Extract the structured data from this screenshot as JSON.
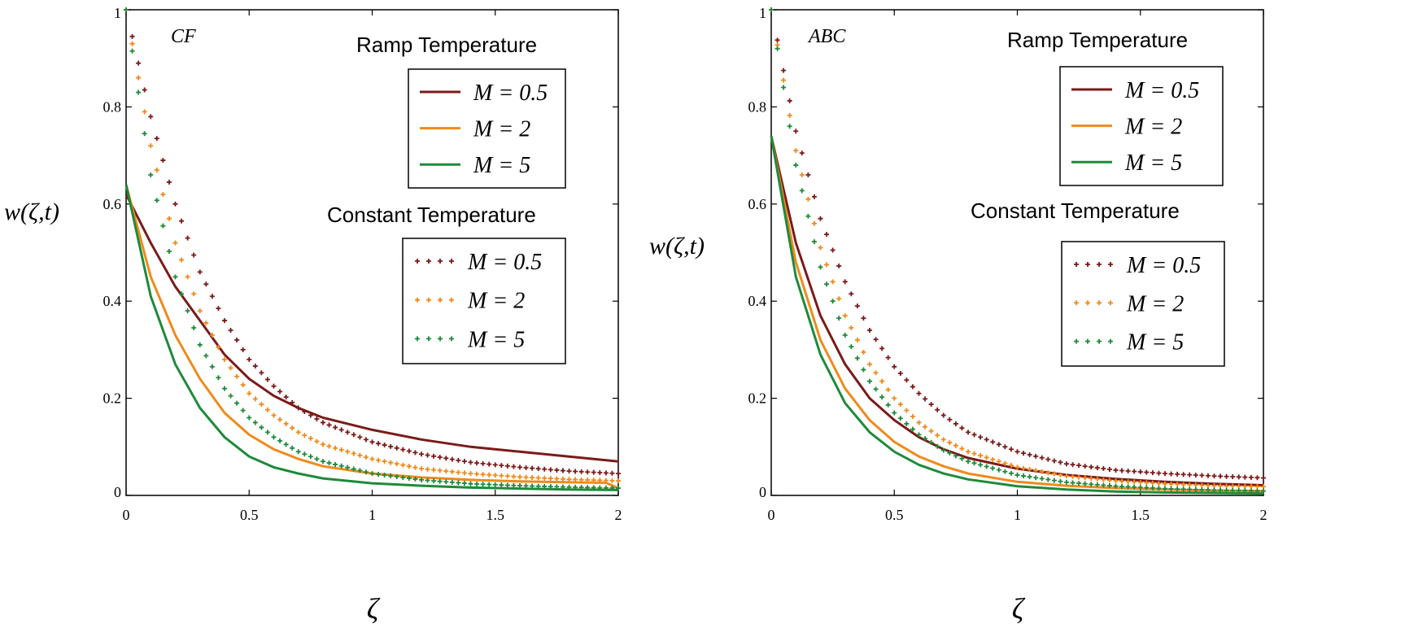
{
  "chart_data": [
    {
      "type": "line",
      "title": "CF",
      "xlabel": "ζ",
      "ylabel": "w(ζ,t)",
      "xlim": [
        0,
        2
      ],
      "ylim": [
        0,
        1
      ],
      "xticks": [
        "0",
        "0.5",
        "1",
        "1.5",
        "2"
      ],
      "yticks": [
        "0",
        "0.2",
        "0.4",
        "0.6",
        "0.8",
        "1"
      ],
      "legend_groups": [
        {
          "title": "Ramp Temperature",
          "style": "solid",
          "series": [
            {
              "name": "M = 0.5",
              "color": "#7b1a1a",
              "x": [
                0,
                0.1,
                0.2,
                0.3,
                0.4,
                0.5,
                0.6,
                0.7,
                0.8,
                1.0,
                1.2,
                1.4,
                1.6,
                1.8,
                2.0
              ],
              "y": [
                0.62,
                0.52,
                0.43,
                0.36,
                0.29,
                0.24,
                0.205,
                0.18,
                0.16,
                0.135,
                0.115,
                0.1,
                0.09,
                0.08,
                0.07
              ]
            },
            {
              "name": "M = 2",
              "color": "#f08a1c",
              "x": [
                0,
                0.1,
                0.2,
                0.3,
                0.4,
                0.5,
                0.6,
                0.7,
                0.8,
                1.0,
                1.2,
                1.4,
                1.6,
                1.8,
                1.95,
                2.0
              ],
              "y": [
                0.64,
                0.45,
                0.33,
                0.24,
                0.17,
                0.125,
                0.095,
                0.075,
                0.06,
                0.045,
                0.037,
                0.032,
                0.029,
                0.027,
                0.026,
                0.015
              ]
            },
            {
              "name": "M = 5",
              "color": "#1e8a3a",
              "x": [
                0,
                0.1,
                0.2,
                0.3,
                0.4,
                0.5,
                0.6,
                0.7,
                0.8,
                1.0,
                1.2,
                1.4,
                1.6,
                1.8,
                2.0
              ],
              "y": [
                0.64,
                0.41,
                0.27,
                0.18,
                0.12,
                0.08,
                0.058,
                0.045,
                0.035,
                0.025,
                0.02,
                0.016,
                0.014,
                0.012,
                0.011
              ]
            }
          ]
        },
        {
          "title": "Constant Temperature",
          "style": "dotted",
          "series": [
            {
              "name": "M = 0.5",
              "color": "#7b1a1a",
              "x": [
                0,
                0.1,
                0.2,
                0.3,
                0.4,
                0.5,
                0.6,
                0.7,
                0.8,
                1.0,
                1.2,
                1.4,
                1.6,
                1.8,
                2.0
              ],
              "y": [
                1.0,
                0.78,
                0.6,
                0.46,
                0.36,
                0.28,
                0.225,
                0.18,
                0.15,
                0.11,
                0.085,
                0.068,
                0.058,
                0.05,
                0.045
              ]
            },
            {
              "name": "M = 2",
              "color": "#f08a1c",
              "x": [
                0,
                0.1,
                0.2,
                0.3,
                0.4,
                0.5,
                0.6,
                0.7,
                0.8,
                1.0,
                1.2,
                1.4,
                1.6,
                1.8,
                2.0
              ],
              "y": [
                1.0,
                0.72,
                0.52,
                0.38,
                0.28,
                0.21,
                0.165,
                0.13,
                0.105,
                0.075,
                0.055,
                0.045,
                0.038,
                0.033,
                0.03
              ]
            },
            {
              "name": "M = 5",
              "color": "#1e8a3a",
              "x": [
                0,
                0.1,
                0.2,
                0.3,
                0.4,
                0.5,
                0.6,
                0.7,
                0.8,
                1.0,
                1.2,
                1.4,
                1.6,
                1.8,
                2.0
              ],
              "y": [
                1.0,
                0.66,
                0.45,
                0.31,
                0.22,
                0.16,
                0.12,
                0.09,
                0.07,
                0.045,
                0.032,
                0.024,
                0.02,
                0.017,
                0.015
              ]
            }
          ]
        }
      ]
    },
    {
      "type": "line",
      "title": "ABC",
      "xlabel": "ζ",
      "ylabel": "w(ζ,t)",
      "xlim": [
        0,
        2
      ],
      "ylim": [
        0,
        1
      ],
      "xticks": [
        "0",
        "0.5",
        "1",
        "1.5",
        "2"
      ],
      "yticks": [
        "0",
        "0.2",
        "0.4",
        "0.6",
        "0.8",
        "1"
      ],
      "legend_groups": [
        {
          "title": "Ramp Temperature",
          "style": "solid",
          "series": [
            {
              "name": "M = 0.5",
              "color": "#7b1a1a",
              "x": [
                0,
                0.1,
                0.2,
                0.3,
                0.4,
                0.5,
                0.6,
                0.7,
                0.8,
                1.0,
                1.2,
                1.4,
                1.6,
                1.8,
                2.0
              ],
              "y": [
                0.74,
                0.52,
                0.37,
                0.27,
                0.2,
                0.155,
                0.12,
                0.095,
                0.077,
                0.055,
                0.042,
                0.034,
                0.028,
                0.024,
                0.021
              ]
            },
            {
              "name": "M = 2",
              "color": "#f08a1c",
              "x": [
                0,
                0.1,
                0.2,
                0.3,
                0.4,
                0.5,
                0.6,
                0.7,
                0.8,
                1.0,
                1.2,
                1.4,
                1.6,
                1.8,
                2.0
              ],
              "y": [
                0.74,
                0.48,
                0.32,
                0.22,
                0.155,
                0.11,
                0.08,
                0.06,
                0.045,
                0.028,
                0.02,
                0.015,
                0.012,
                0.01,
                0.009
              ]
            },
            {
              "name": "M = 5",
              "color": "#1e8a3a",
              "x": [
                0,
                0.1,
                0.2,
                0.3,
                0.4,
                0.5,
                0.6,
                0.7,
                0.8,
                1.0,
                1.2,
                1.4,
                1.6,
                1.8,
                2.0
              ],
              "y": [
                0.74,
                0.45,
                0.29,
                0.19,
                0.13,
                0.09,
                0.063,
                0.045,
                0.033,
                0.019,
                0.012,
                0.008,
                0.006,
                0.005,
                0.004
              ]
            }
          ]
        },
        {
          "title": "Constant Temperature",
          "style": "dotted",
          "series": [
            {
              "name": "M = 0.5",
              "color": "#7b1a1a",
              "x": [
                0,
                0.1,
                0.2,
                0.3,
                0.4,
                0.5,
                0.6,
                0.7,
                0.8,
                1.0,
                1.2,
                1.4,
                1.6,
                1.8,
                2.0
              ],
              "y": [
                1.0,
                0.75,
                0.57,
                0.44,
                0.34,
                0.265,
                0.21,
                0.165,
                0.13,
                0.09,
                0.065,
                0.052,
                0.045,
                0.04,
                0.036
              ]
            },
            {
              "name": "M = 2",
              "color": "#f08a1c",
              "x": [
                0,
                0.1,
                0.2,
                0.3,
                0.4,
                0.5,
                0.6,
                0.7,
                0.8,
                1.0,
                1.2,
                1.4,
                1.6,
                1.8,
                2.0
              ],
              "y": [
                1.0,
                0.71,
                0.51,
                0.37,
                0.27,
                0.2,
                0.15,
                0.115,
                0.09,
                0.058,
                0.04,
                0.03,
                0.024,
                0.02,
                0.018
              ]
            },
            {
              "name": "M = 5",
              "color": "#1e8a3a",
              "x": [
                0,
                0.1,
                0.2,
                0.3,
                0.4,
                0.5,
                0.6,
                0.7,
                0.8,
                1.0,
                1.2,
                1.4,
                1.6,
                1.8,
                2.0
              ],
              "y": [
                1.0,
                0.68,
                0.47,
                0.33,
                0.235,
                0.17,
                0.125,
                0.093,
                0.07,
                0.042,
                0.027,
                0.019,
                0.014,
                0.011,
                0.009
              ]
            }
          ]
        }
      ]
    }
  ]
}
